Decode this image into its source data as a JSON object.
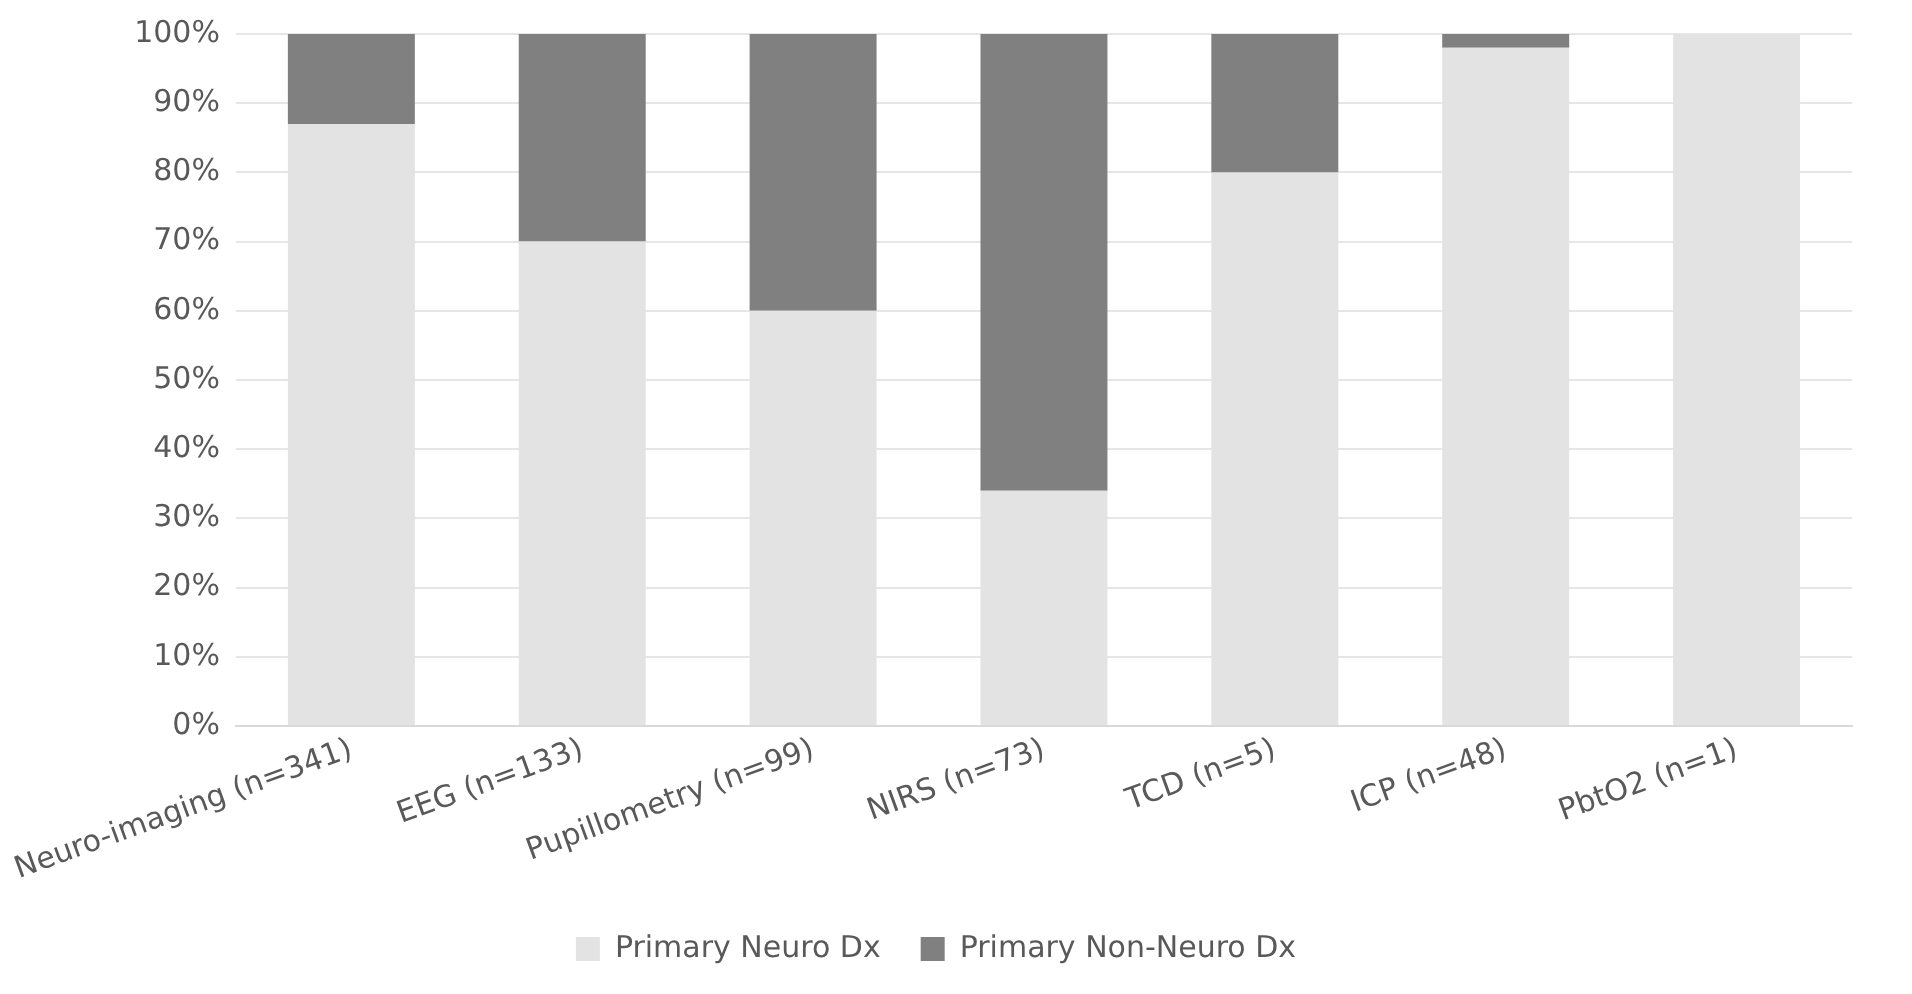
{
  "chart_data": {
    "type": "bar",
    "stacked": true,
    "categories": [
      "Neuro-imaging (n=341)",
      "EEG (n=133)",
      "Pupillometry (n=99)",
      "NIRS (n=73)",
      "TCD (n=5)",
      "ICP (n=48)",
      "PbtO2 (n=1)"
    ],
    "series": [
      {
        "name": "Primary Neuro Dx",
        "color": "#e3e3e3",
        "values": [
          87,
          70,
          60,
          34,
          80,
          98,
          100
        ]
      },
      {
        "name": "Primary Non-Neuro Dx",
        "color": "#808080",
        "values": [
          13,
          30,
          40,
          66,
          20,
          2,
          0
        ]
      }
    ],
    "ylim": [
      0,
      100
    ],
    "yticks": [
      {
        "value": 0,
        "label": "0%"
      },
      {
        "value": 10,
        "label": "10%"
      },
      {
        "value": 20,
        "label": "20%"
      },
      {
        "value": 30,
        "label": "30%"
      },
      {
        "value": 40,
        "label": "40%"
      },
      {
        "value": 50,
        "label": "50%"
      },
      {
        "value": 60,
        "label": "60%"
      },
      {
        "value": 70,
        "label": "70%"
      },
      {
        "value": 80,
        "label": "80%"
      },
      {
        "value": 90,
        "label": "90%"
      },
      {
        "value": 100,
        "label": "100%"
      }
    ],
    "grid": "y",
    "legend": "bottom"
  }
}
